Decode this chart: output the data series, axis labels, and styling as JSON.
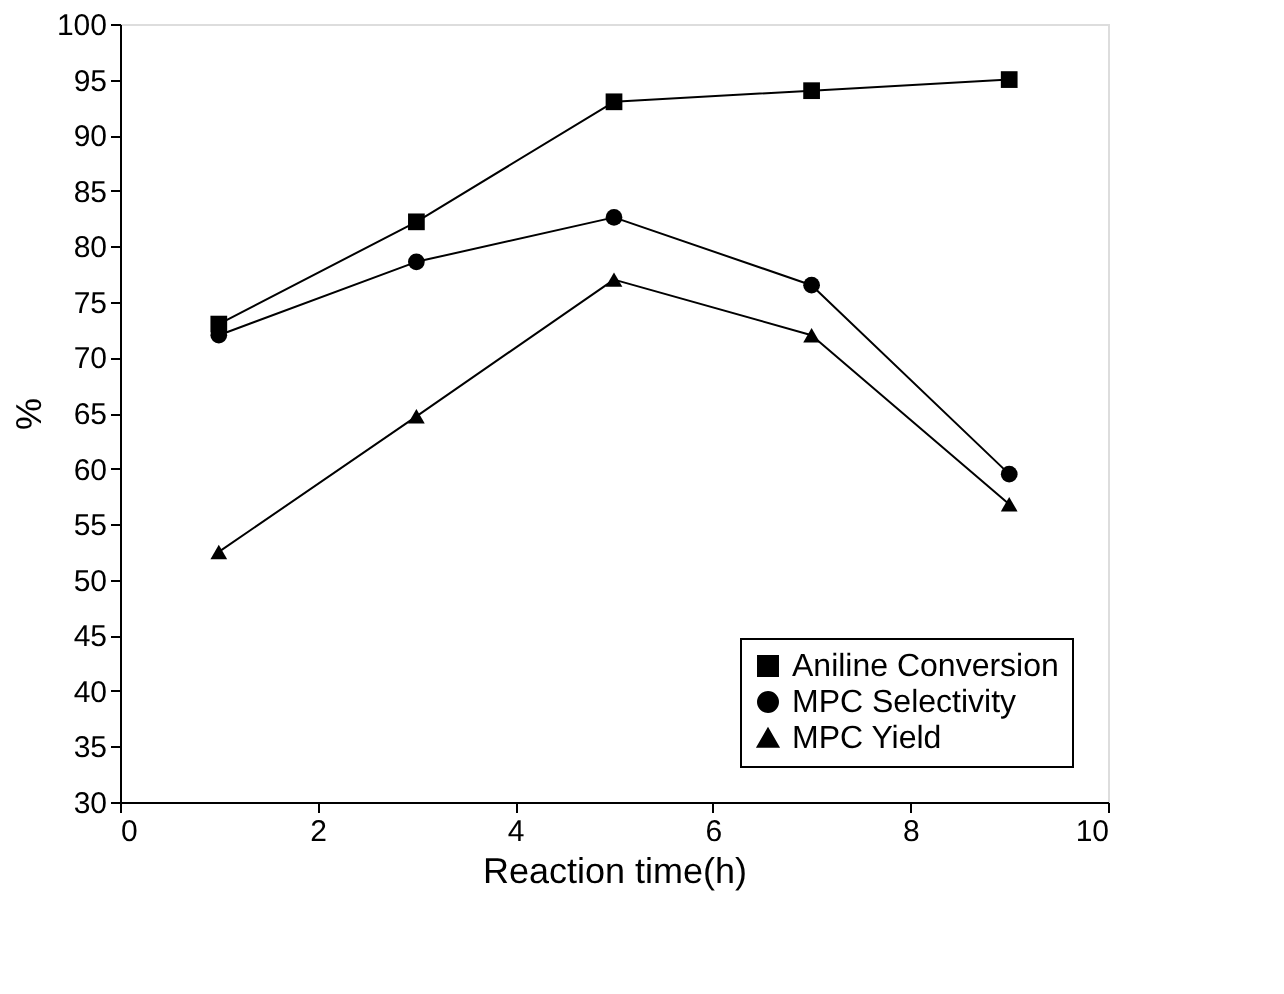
{
  "chart_data": {
    "type": "line",
    "xlabel": "Reaction time(h)",
    "ylabel": "%",
    "x": [
      1,
      3,
      5,
      7,
      9
    ],
    "series": [
      {
        "name": "Aniline Conversion",
        "color": "#000000",
        "marker": "square",
        "values": [
          73,
          82.2,
          93,
          94,
          95
        ]
      },
      {
        "name": "MPC Selectivity",
        "color": "#000000",
        "marker": "circle",
        "values": [
          72,
          78.6,
          82.6,
          76.5,
          59.5
        ]
      },
      {
        "name": "MPC Yield",
        "color": "#000000",
        "marker": "triangle",
        "values": [
          52.5,
          64.7,
          77,
          72,
          56.8
        ]
      }
    ],
    "xlim": [
      0,
      10
    ],
    "xticks": [
      0,
      2,
      4,
      6,
      8,
      10
    ],
    "ylim": [
      30,
      100
    ],
    "yticks": [
      30,
      35,
      40,
      45,
      50,
      55,
      60,
      65,
      70,
      75,
      80,
      85,
      90,
      95,
      100
    ],
    "grid": false,
    "legend": "bottom right",
    "line_style": "solid"
  }
}
